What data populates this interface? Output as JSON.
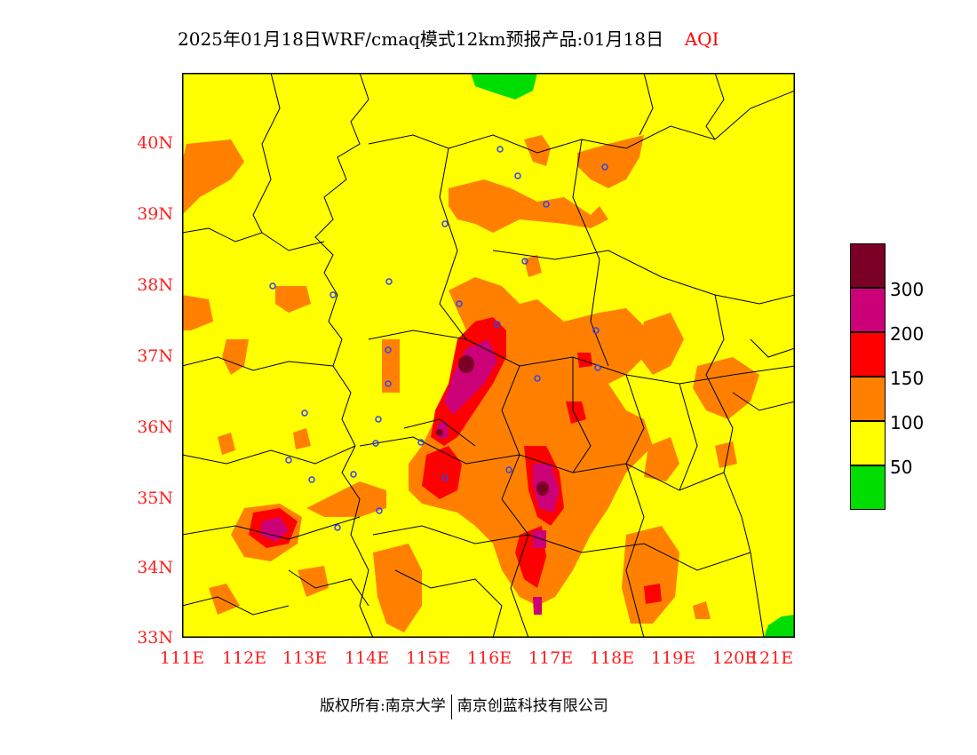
{
  "title": {
    "main": "2025年01月18日WRF/cmaq模式12km预报产品:01月18日",
    "variable": "AQI"
  },
  "axes": {
    "lat_labels": [
      "40N",
      "39N",
      "38N",
      "37N",
      "36N",
      "35N",
      "34N",
      "33N"
    ],
    "lon_labels": [
      "111E",
      "112E",
      "113E",
      "114E",
      "115E",
      "116E",
      "117E",
      "118E",
      "119E",
      "120E",
      "121E"
    ]
  },
  "legend": {
    "levels": [
      "300",
      "200",
      "150",
      "100",
      "50"
    ],
    "colors": [
      "#7a0025",
      "#cc0077",
      "#ff0000",
      "#ff8000",
      "#ffff00",
      "#00dd00"
    ]
  },
  "footer": {
    "left": "版权所有:南京大学",
    "right": "南京创蓝科技有限公司"
  }
}
